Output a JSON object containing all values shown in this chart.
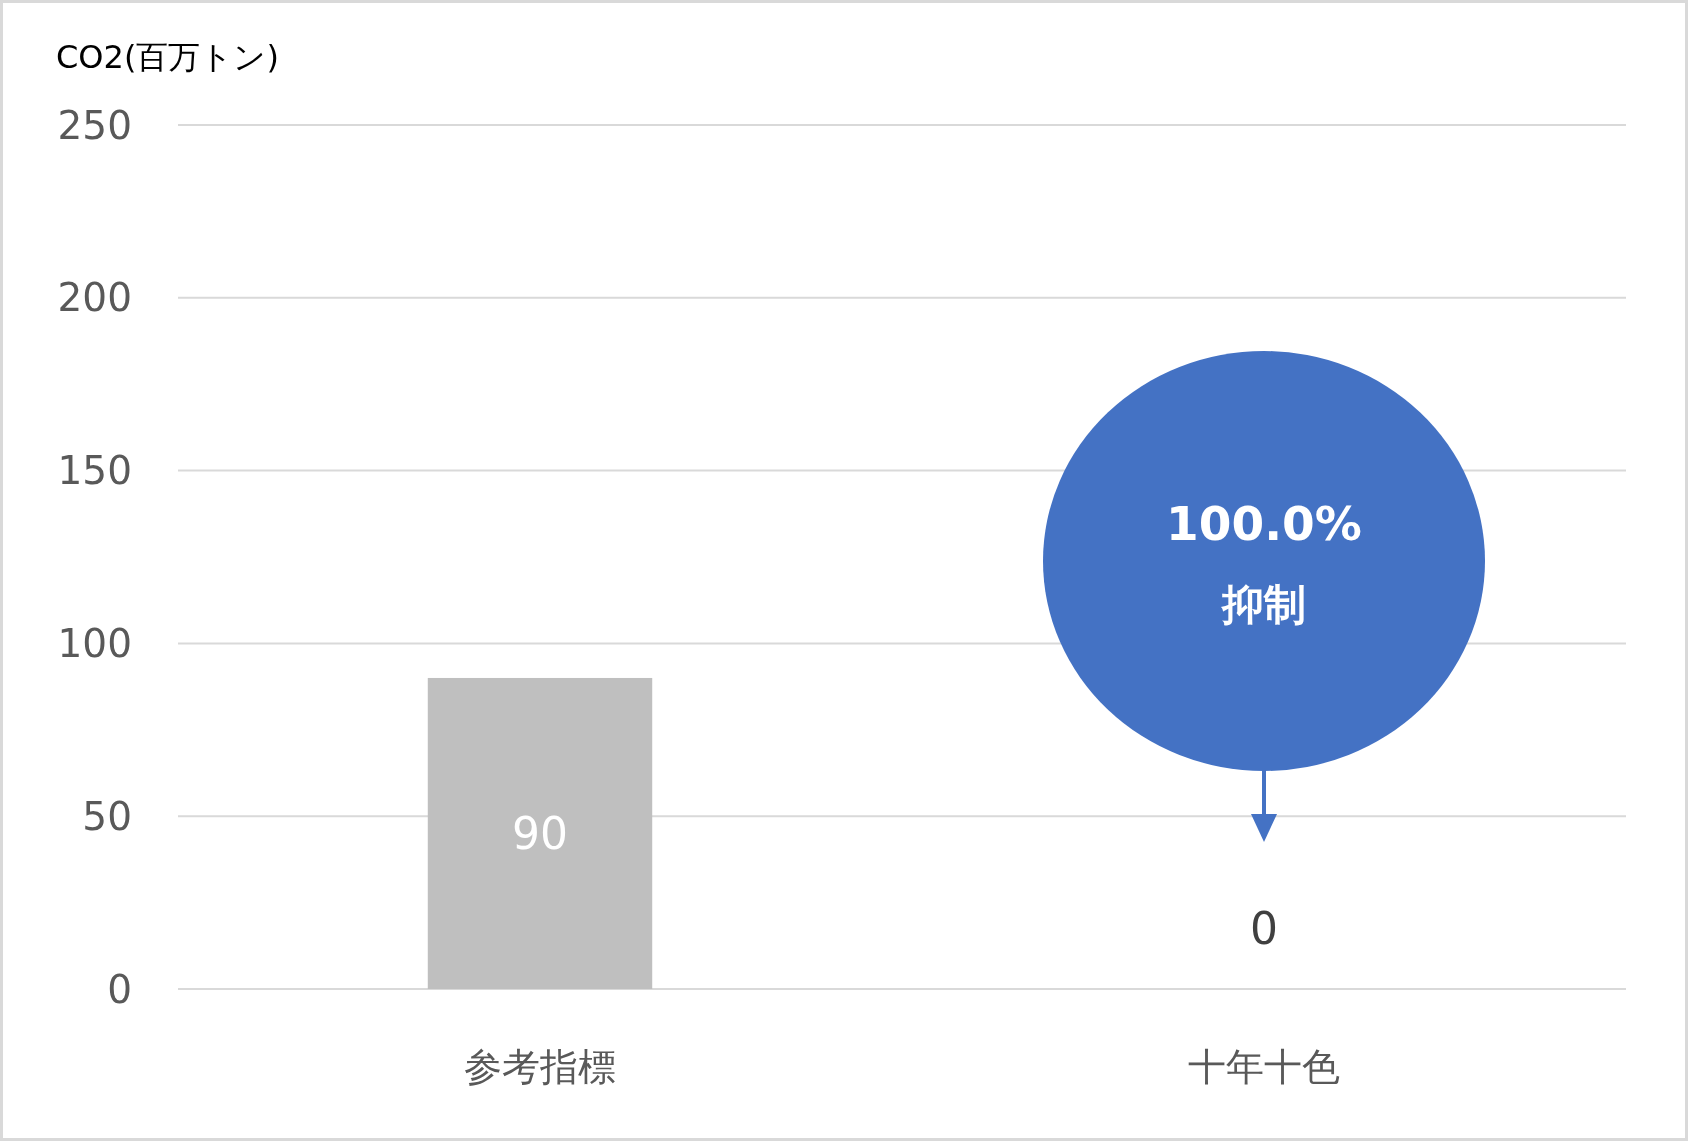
{
  "chart_data": {
    "type": "bar",
    "ylabel": "CO2(百万トン)",
    "categories": [
      "参考指標",
      "十年十色"
    ],
    "values": [
      90,
      0
    ],
    "color": "#bfbfbf",
    "ylim": [
      0,
      250
    ],
    "yticks": [
      0,
      50,
      100,
      150,
      200,
      250
    ],
    "grid": "y",
    "data_labels": true,
    "annotations": [
      "100.0%\n抑制"
    ]
  }
}
